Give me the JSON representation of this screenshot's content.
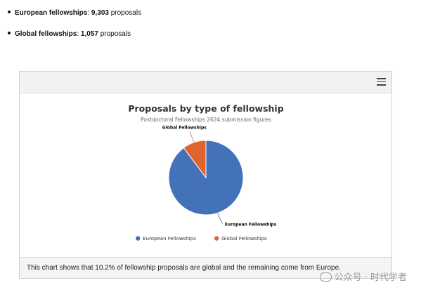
{
  "bullets": [
    {
      "label": "European fellowships",
      "sep": ": ",
      "value": "9,303",
      "unit": " proposals"
    },
    {
      "label": "Global fellowships",
      "sep": ": ",
      "value": "1,057",
      "unit": " proposals"
    }
  ],
  "chart_data": {
    "type": "pie",
    "title": "Proposals by type of fellowship",
    "subtitle": "Postdoctoral Fellowships 2024 submission figures",
    "slices": [
      {
        "name": "European Fellowships",
        "value": 9303,
        "color": "#4472b8"
      },
      {
        "name": "Global Fellowships",
        "value": 1057,
        "color": "#e0642e"
      }
    ],
    "data_labels": [
      "European Fellowships",
      "Global Fellowships"
    ],
    "legend": {
      "placement": "bottom",
      "entries": [
        "European Fellowships",
        "Global Fellowships"
      ]
    }
  },
  "toolbar": {
    "menu_icon": "hamburger-menu-icon"
  },
  "caption": "This chart shows that 10.2% of fellowship proposals are global and the remaining come from Europe.",
  "watermark": "公众号 · 时代学者"
}
